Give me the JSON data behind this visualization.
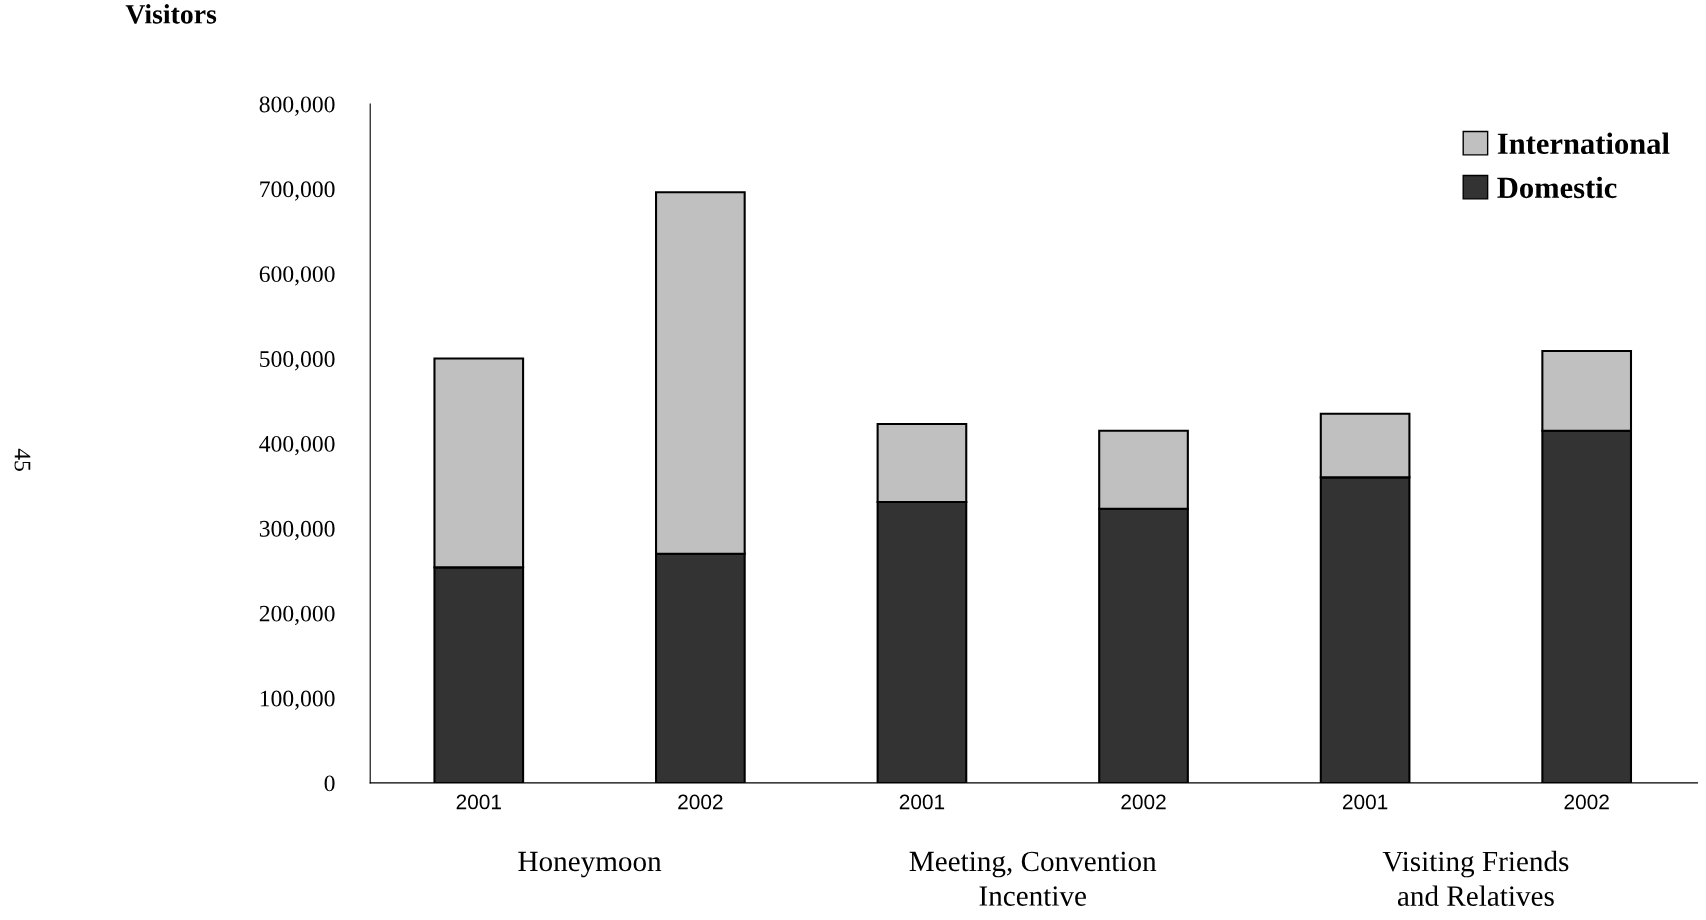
{
  "chart_data": {
    "type": "bar",
    "stacked": true,
    "ylabel": "Visitors",
    "categories": [
      "2001",
      "2002",
      "2001",
      "2002",
      "2001",
      "2002"
    ],
    "series": [
      {
        "name": "Domestic",
        "color": "#333333",
        "values": [
          254000,
          270000,
          331000,
          323000,
          360000,
          415000
        ]
      },
      {
        "name": "International",
        "color": "#c0c0c0",
        "values": [
          246000,
          426000,
          92000,
          92000,
          75000,
          94000
        ]
      }
    ],
    "ylim": [
      0,
      800000
    ],
    "yticks": [
      0,
      {
        "value": 100000,
        "label": "100,000"
      },
      {
        "value": 200000,
        "label": "200,000"
      },
      {
        "value": 300000,
        "label": "300,000"
      },
      {
        "value": 400000,
        "label": "400,000"
      },
      {
        "value": 500000,
        "label": "500,000"
      },
      {
        "value": 600000,
        "label": "600,000"
      },
      {
        "value": 700000,
        "label": "700,000"
      },
      {
        "value": 800000,
        "label": "800,000"
      }
    ],
    "annotations": [
      "Honeymoon",
      "Meeting, Convention\nIncentive",
      "Visiting Friends\nand Relatives",
      "45"
    ],
    "legend": "top right",
    "grid": false
  }
}
